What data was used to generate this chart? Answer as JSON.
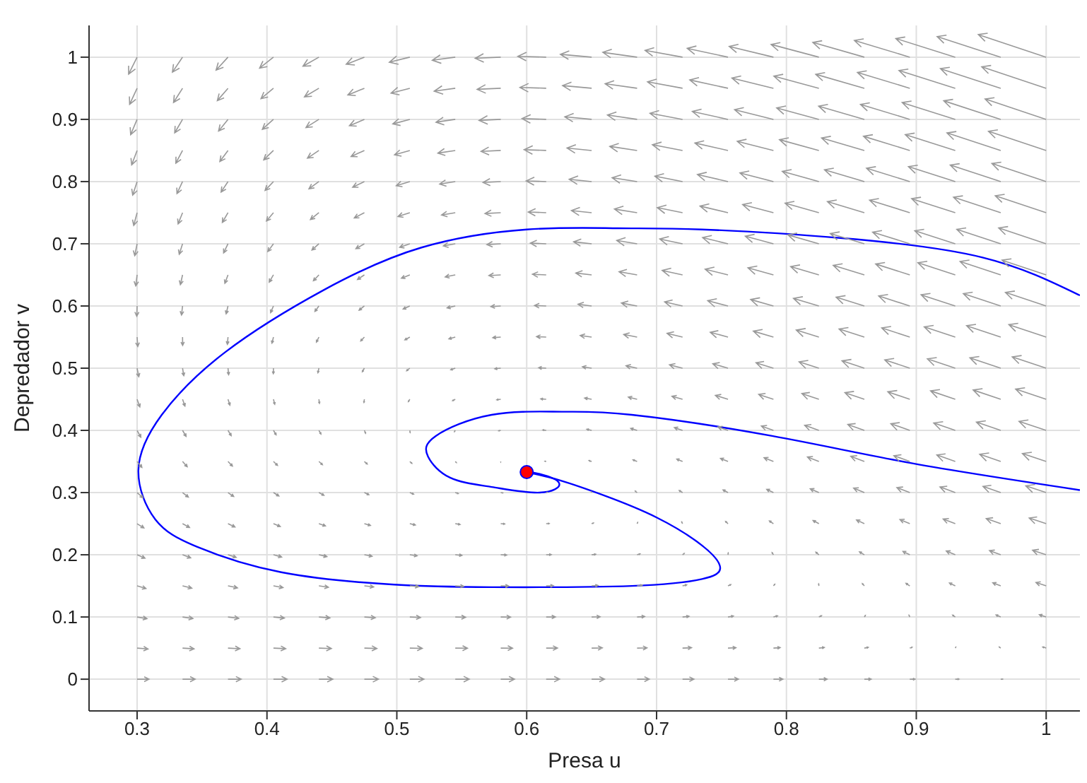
{
  "chart_data": {
    "type": "line",
    "xlabel": "Presa u",
    "ylabel": "Depredador v",
    "xlim": [
      0.263,
      1.026
    ],
    "ylim": [
      -0.051,
      1.051
    ],
    "xticks": [
      0.3,
      0.4,
      0.5,
      0.6,
      0.7,
      0.8,
      0.9,
      1
    ],
    "yticks": [
      0,
      0.1,
      0.2,
      0.3,
      0.4,
      0.5,
      0.6,
      0.7,
      0.8,
      0.9,
      1
    ],
    "grid": true,
    "legend": false,
    "marker": "none",
    "line_style": "solid",
    "series": [
      {
        "color": "#0000ff",
        "x": [
          1.026,
          0.951,
          0.843,
          0.735,
          0.67,
          0.6,
          0.519,
          0.444,
          0.368,
          0.319,
          0.301,
          0.314,
          0.346,
          0.411,
          0.498,
          0.573,
          0.681,
          0.735,
          0.749,
          0.735,
          0.7,
          0.66,
          0.625,
          0.6
        ],
        "values": [
          0.617,
          0.678,
          0.709,
          0.723,
          0.725,
          0.723,
          0.694,
          0.626,
          0.526,
          0.425,
          0.336,
          0.257,
          0.213,
          0.172,
          0.152,
          0.148,
          0.15,
          0.161,
          0.179,
          0.215,
          0.26,
          0.295,
          0.32,
          0.333
        ]
      },
      {
        "color": "#0000ff",
        "x": [
          1.026,
          0.897,
          0.789,
          0.681,
          0.627,
          0.573,
          0.53,
          0.524,
          0.541,
          0.573,
          0.61,
          0.625,
          0.61,
          0.6
        ],
        "values": [
          0.304,
          0.347,
          0.391,
          0.425,
          0.43,
          0.425,
          0.391,
          0.358,
          0.324,
          0.309,
          0.3,
          0.315,
          0.33,
          0.333
        ]
      },
      {
        "type": "scatter",
        "color": "#ff0000",
        "marker": "circle",
        "x": [
          0.6
        ],
        "values": [
          0.333
        ]
      }
    ]
  }
}
